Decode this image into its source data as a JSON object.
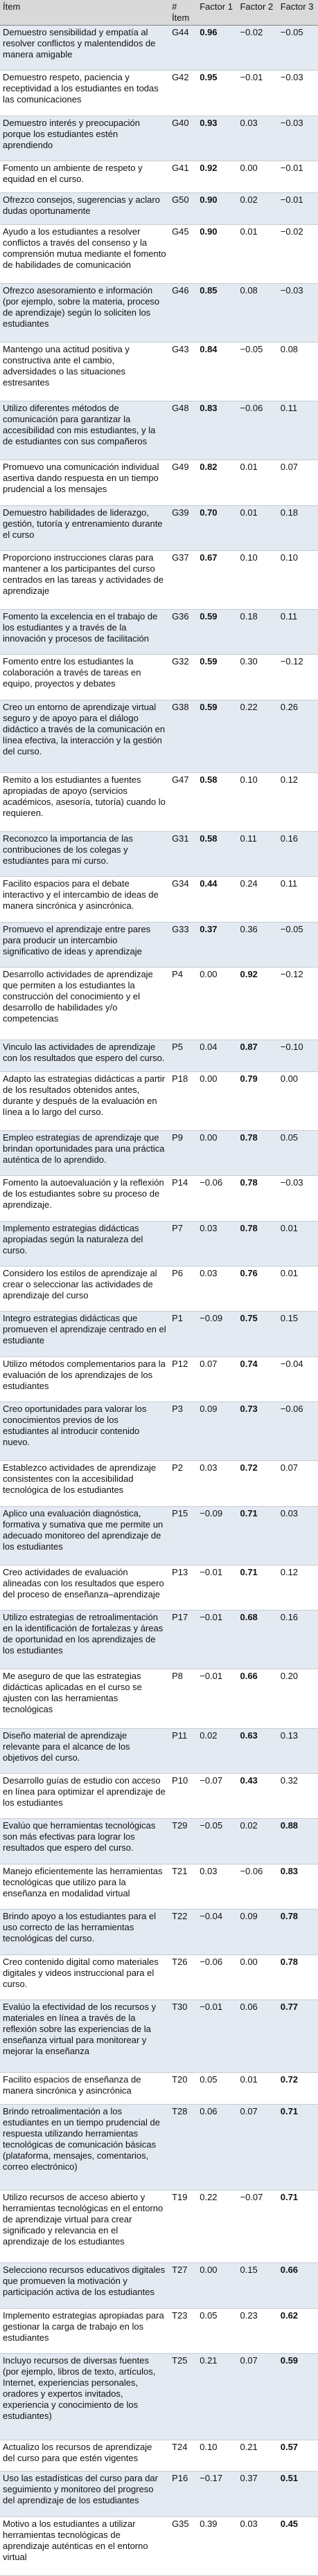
{
  "table": {
    "header": [
      "Ítem",
      "# Ítem",
      "Factor 1",
      "Factor 2",
      "Factor 3"
    ],
    "rows": [
      [
        "Demuestro sensibilidad y empatía al resolver conflictos y malentendidos de manera amigable",
        "G44",
        "0.96",
        "−0.02",
        "−0.05"
      ],
      [
        "Demuestro respeto, paciencia y receptividad a los estudiantes en todas las comunicaciones",
        "G42",
        "0.95",
        "−0.01",
        "−0.03"
      ],
      [
        "Demuestro interés y preocupación porque los estudiantes estén aprendiendo",
        "G40",
        "0.93",
        "0.03",
        "−0.03"
      ],
      [
        "Fomento un ambiente de respeto y equidad en el curso.",
        "G41",
        "0.92",
        "0.00",
        "−0.01"
      ],
      [
        "Ofrezco consejos, sugerencias y aclaro dudas oportunamente",
        "G50",
        "0.90",
        "0.02",
        "−0.01"
      ],
      [
        "Ayudo a los estudiantes a resolver conflictos a través del consenso y la comprensión mutua mediante el fomento de habilidades de comunicación",
        "G45",
        "0.90",
        "0.01",
        "−0.02"
      ],
      [
        "Ofrezco asesoramiento e información (por ejemplo, sobre la materia, proceso de aprendizaje) según lo soliciten los estudiantes",
        "G46",
        "0.85",
        "0.08",
        "−0.03"
      ],
      [
        "Mantengo una actitud positiva y constructiva ante el cambio, adversidades o las situaciones estresantes",
        "G43",
        "0.84",
        "−0.05",
        "0.08"
      ],
      [
        "Utilizo diferentes métodos de comunicación para garantizar la accesibilidad con mis estudiantes, y la de estudiantes con sus compañeros",
        "G48",
        "0.83",
        "−0.06",
        "0.11"
      ],
      [
        "Promuevo una comunicación individual asertiva dando respuesta en un tiempo prudencial a los mensajes",
        "G49",
        "0.82",
        "0.01",
        "0.07"
      ],
      [
        "Demuestro habilidades de liderazgo, gestión, tutoría y entrenamiento durante el curso",
        "G39",
        "0.70",
        "0.01",
        "0.18"
      ],
      [
        "Proporciono instrucciones claras para mantener a los participantes del curso centrados en las tareas y actividades de aprendizaje",
        "G37",
        "0.67",
        "0.10",
        "0.10"
      ],
      [
        "Fomento la excelencia en el trabajo de los estudiantes y a través de la innovación y procesos de facilitación",
        "G36",
        "0.59",
        "0.18",
        "0.11"
      ],
      [
        "Fomento entre los estudiantes la colaboración a través de tareas en equipo, proyectos y debates",
        "G32",
        "0.59",
        "0.30",
        "−0.12"
      ],
      [
        "Creo un entorno de aprendizaje virtual seguro y de apoyo para el diálogo didáctico a través de la comunicación en línea efectiva, la interacción y la gestión del curso.",
        "G38",
        "0.59",
        "0.22",
        "0.26"
      ],
      [
        "Remito a los estudiantes a fuentes apropiadas de apoyo (servicios académicos, asesoría, tutoría) cuando lo requieren.",
        "G47",
        "0.58",
        "0.10",
        "0.12"
      ],
      [
        "Reconozco la importancia de las contribuciones de los colegas y estudiantes para mi curso.",
        "G31",
        "0.58",
        "0.11",
        "0.16"
      ],
      [
        "Facilito espacios para el debate interactivo y el intercambio de ideas de manera sincrónica y asincrónica.",
        "G34",
        "0.44",
        "0.24",
        "0.11"
      ],
      [
        "Promuevo el aprendizaje entre pares para producir un intercambio significativo de ideas y aprendizaje",
        "G33",
        "0.37",
        "0.36",
        "−0.05"
      ],
      [
        "Desarrollo actividades de aprendizaje que permiten a los estudiantes la construcción del conocimiento y el desarrollo de habilidades y/o competencias",
        "P4",
        "0.00",
        "0.92",
        "−0.12"
      ],
      [
        "Vinculo las actividades de aprendizaje con los resultados que espero del curso.",
        "P5",
        "0.04",
        "0.87",
        "−0.10"
      ],
      [
        "Adapto las estrategias didácticas a partir de los resultados obtenidos antes, durante y después de la evaluación en línea a lo largo del curso.",
        "P18",
        "0.00",
        "0.79",
        "0.00"
      ],
      [
        "Empleo estrategias de aprendizaje que brindan oportunidades para una práctica auténtica de lo aprendido.",
        "P9",
        "0.00",
        "0.78",
        "0.05"
      ],
      [
        "Fomento la autoevaluación y la reflexión de los estudiantes sobre su proceso de aprendizaje.",
        "P14",
        "−0.06",
        "0.78",
        "−0.03"
      ],
      [
        "Implemento estrategias didácticas apropiadas según la naturaleza del curso.",
        "P7",
        "0.03",
        "0.78",
        "0.01"
      ],
      [
        "Considero los estilos de aprendizaje al crear o seleccionar las actividades de aprendizaje del curso",
        "P6",
        "0.03",
        "0.76",
        "0.01"
      ],
      [
        "Integro estrategias didácticas que promueven el aprendizaje centrado en el estudiante",
        "P1",
        "−0.09",
        "0.75",
        "0.15"
      ],
      [
        "Utilizo métodos complementarios para la evaluación de los aprendizajes de los estudiantes",
        "P12",
        "0.07",
        "0.74",
        "−0.04"
      ],
      [
        "Creo oportunidades para valorar los conocimientos previos de los estudiantes al introducir contenido nuevo.",
        "P3",
        "0.09",
        "0.73",
        "−0.06"
      ],
      [
        "Establezco actividades de aprendizaje consistentes con la accesibilidad tecnológica de los estudiantes",
        "P2",
        "0.03",
        "0.72",
        "0.07"
      ],
      [
        "Aplico una evaluación diagnóstica, formativa y sumativa que me permite un adecuado monitoreo del aprendizaje de los estudiantes",
        "P15",
        "−0.09",
        "0.71",
        "0.03"
      ],
      [
        "Creo actividades de evaluación alineadas con los resultados que espero del proceso de enseñanza–aprendizaje",
        "P13",
        "−0.01",
        "0.71",
        "0.12"
      ],
      [
        "Utilizo estrategias de retroalimentación en la identificación de fortalezas y áreas de oportunidad en los aprendizajes de los estudiantes",
        "P17",
        "−0.01",
        "0.68",
        "0.16"
      ],
      [
        "Me aseguro de que las estrategias didácticas aplicadas en el curso se ajusten con las herramientas tecnológicas",
        "P8",
        "−0.01",
        "0.66",
        "0.20"
      ],
      [
        "Diseño material de aprendizaje relevante para el alcance de los objetivos del curso.",
        "P11",
        "0.02",
        "0.63",
        "0.13"
      ],
      [
        "Desarrollo guías de estudio con acceso en línea para optimizar el aprendizaje de los estudiantes",
        "P10",
        "−0.07",
        "0.43",
        "0.32"
      ],
      [
        "Evalúo que herramientas tecnológicas son más efectivas para lograr los resultados que espero del curso.",
        "T29",
        "−0.05",
        "0.02",
        "0.88"
      ],
      [
        "Manejo eficientemente las herramientas tecnológicas que utilizo para la enseñanza en modalidad virtual",
        "T21",
        "0.03",
        "−0.06",
        "0.83"
      ],
      [
        "Brindo apoyo a los estudiantes para el uso correcto de las herramientas tecnológicas del curso.",
        "T22",
        "−0.04",
        "0.09",
        "0.78"
      ],
      [
        "Creo contenido digital como materiales digitales y videos instruccional para el curso.",
        "T26",
        "−0.06",
        "0.00",
        "0.78"
      ],
      [
        "Evalúo la efectividad de los recursos y materiales en línea a través de la reflexión sobre las experiencias de la enseñanza virtual para monitorear y mejorar la enseñanza",
        "T30",
        "−0.01",
        "0.06",
        "0.77"
      ],
      [
        "Facilito espacios de enseñanza de manera sincrónica y asincrónica",
        "T20",
        "0.05",
        "0.01",
        "0.72"
      ],
      [
        "Brindo retroalimentación a los estudiantes en un tiempo prudencial de respuesta utilizando herramientas tecnológicas de comunicación básicas (plataforma, mensajes, comentarios, correo electrónico)",
        "T28",
        "0.06",
        "0.07",
        "0.71"
      ],
      [
        "Utilizo recursos de acceso abierto y herramientas tecnológicas en el entorno de aprendizaje virtual para crear significado y relevancia en el aprendizaje de los estudiantes",
        "T19",
        "0.22",
        "−0.07",
        "0.71"
      ],
      [
        "Selecciono recursos educativos digitales que promueven la motivación y participación activa de los estudiantes",
        "T27",
        "0.00",
        "0.15",
        "0.66"
      ],
      [
        "Implemento estrategias apropiadas para gestionar la carga de trabajo en los estudiantes",
        "T23",
        "0.05",
        "0.23",
        "0.62"
      ],
      [
        "Incluyo recursos de diversas fuentes (por ejemplo, libros de texto, artículos, Internet, experiencias personales, oradores y expertos invitados, experiencia y conocimiento de los estudiantes)",
        "T25",
        "0.21",
        "0.07",
        "0.59"
      ],
      [
        "Actualizo los recursos de aprendizaje del curso para que estén vigentes",
        "T24",
        "0.10",
        "0.21",
        "0.57"
      ],
      [
        "Uso las estadísticas del curso para dar seguimiento y monitoreo del progreso del aprendizaje de los estudiantes",
        "P16",
        "−0.17",
        "0.37",
        "0.51"
      ],
      [
        "Motivo a los estudiantes a utilizar herramientas tecnológicas de aprendizaje auténticas en el entorno virtual",
        "G35",
        "0.39",
        "0.03",
        "0.45"
      ]
    ]
  }
}
